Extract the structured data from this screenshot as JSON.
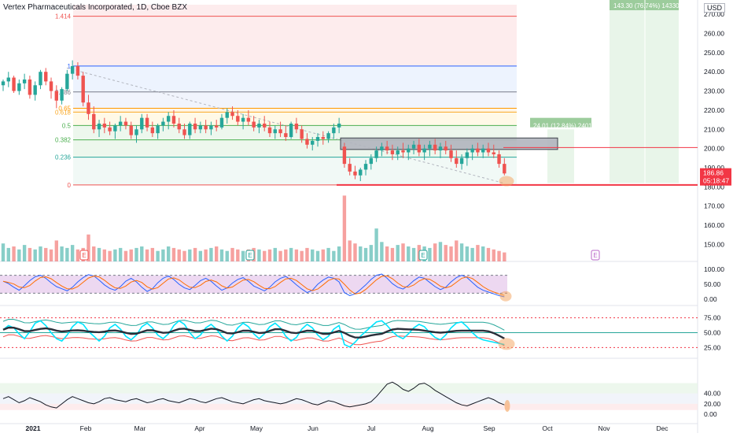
{
  "header": {
    "title": "Vertex Pharmaceuticals Incorporated, 1D, Cboe BZX",
    "currency": "USD"
  },
  "colors": {
    "bull": "#26a69a",
    "bear": "#ef5350",
    "price_line": "#f23645",
    "fib_one": "#2962ff",
    "fib_zero": "#787b86",
    "rsi_fill": "#e1bee7",
    "rsi_line": "#7e57c2",
    "stoch_k": "#2962ff",
    "stoch_d": "#ff6d00",
    "cyan": "#00e5ff",
    "dark": "#2a2e39",
    "ellipse": "#f5a25d"
  },
  "chart_data": {
    "type": "candlestick",
    "price_axis": {
      "ticks": [
        "270.00",
        "260.00",
        "250.00",
        "240.00",
        "230.00",
        "220.00",
        "210.00",
        "200.00",
        "190.00",
        "180.00",
        "170.00",
        "160.00",
        "150.00"
      ],
      "range": [
        144,
        275
      ]
    },
    "x_axis": {
      "ticks": [
        "2021",
        "Feb",
        "Mar",
        "Apr",
        "May",
        "Jun",
        "Jul",
        "Aug",
        "Sep",
        "Oct",
        "Nov",
        "Dec"
      ]
    },
    "current_price": {
      "value": "186.86",
      "countdown": "05:18:47"
    },
    "fib_levels": [
      {
        "label": "1.414",
        "price": 269
      },
      {
        "label": "1",
        "price": 243
      },
      {
        "label": "0.786",
        "price": 229.5
      },
      {
        "label": "0.65",
        "price": 221
      },
      {
        "label": "0.618",
        "price": 219
      },
      {
        "label": "0.5",
        "price": 212
      },
      {
        "label": "0.382",
        "price": 204.5
      },
      {
        "label": "0.236",
        "price": 195.5
      },
      {
        "label": "0",
        "price": 181
      }
    ],
    "long_position_small": {
      "label": "24.01 (12.84%) 2401"
    },
    "long_position_large": {
      "label": "143.30 (76.74%) 14330"
    },
    "earnings_markers": [
      "E",
      "E",
      "E",
      "E"
    ],
    "candles": [
      [
        233,
        236,
        230,
        235
      ],
      [
        235,
        240,
        232,
        237
      ],
      [
        237,
        238,
        229,
        230
      ],
      [
        230,
        236,
        228,
        234
      ],
      [
        234,
        239,
        231,
        236
      ],
      [
        236,
        238,
        226,
        228
      ],
      [
        228,
        235,
        225,
        233
      ],
      [
        233,
        241,
        231,
        240
      ],
      [
        240,
        242,
        233,
        235
      ],
      [
        235,
        237,
        226,
        230
      ],
      [
        230,
        233,
        221,
        225
      ],
      [
        225,
        232,
        223,
        231
      ],
      [
        231,
        241,
        230,
        239
      ],
      [
        239,
        246,
        236,
        243
      ],
      [
        243,
        245,
        236,
        238
      ],
      [
        238,
        240,
        222,
        224
      ],
      [
        224,
        228,
        215,
        218
      ],
      [
        218,
        222,
        208,
        210
      ],
      [
        210,
        215,
        206,
        213
      ],
      [
        213,
        216,
        208,
        211
      ],
      [
        211,
        214,
        207,
        209
      ],
      [
        209,
        213,
        205,
        212
      ],
      [
        212,
        217,
        209,
        214
      ],
      [
        214,
        216,
        210,
        212
      ],
      [
        212,
        214,
        205,
        207
      ],
      [
        207,
        212,
        203,
        210
      ],
      [
        210,
        218,
        208,
        216
      ],
      [
        216,
        218,
        209,
        211
      ],
      [
        211,
        214,
        206,
        208
      ],
      [
        208,
        213,
        205,
        212
      ],
      [
        212,
        216,
        209,
        214
      ],
      [
        214,
        219,
        210,
        217
      ],
      [
        217,
        220,
        211,
        213
      ],
      [
        213,
        216,
        208,
        210
      ],
      [
        210,
        213,
        205,
        207
      ],
      [
        207,
        214,
        205,
        213
      ],
      [
        213,
        216,
        208,
        210
      ],
      [
        210,
        214,
        208,
        212
      ],
      [
        212,
        215,
        208,
        210
      ],
      [
        210,
        214,
        207,
        212
      ],
      [
        212,
        215,
        209,
        211
      ],
      [
        211,
        218,
        210,
        216
      ],
      [
        216,
        221,
        213,
        219
      ],
      [
        219,
        222,
        215,
        217
      ],
      [
        217,
        220,
        212,
        214
      ],
      [
        214,
        218,
        210,
        216
      ],
      [
        216,
        220,
        212,
        214
      ],
      [
        214,
        217,
        209,
        211
      ],
      [
        211,
        215,
        208,
        213
      ],
      [
        213,
        217,
        209,
        211
      ],
      [
        211,
        214,
        206,
        208
      ],
      [
        208,
        212,
        205,
        210
      ],
      [
        210,
        214,
        206,
        208
      ],
      [
        208,
        212,
        204,
        206
      ],
      [
        206,
        214,
        205,
        213
      ],
      [
        213,
        216,
        208,
        210
      ],
      [
        210,
        212,
        203,
        205
      ],
      [
        205,
        208,
        200,
        202
      ],
      [
        202,
        206,
        199,
        204
      ],
      [
        204,
        208,
        201,
        206
      ],
      [
        206,
        209,
        202,
        205
      ],
      [
        205,
        209,
        203,
        208
      ],
      [
        208,
        213,
        205,
        211
      ],
      [
        211,
        216,
        208,
        213
      ],
      [
        201,
        203,
        190,
        192
      ],
      [
        192,
        195,
        186,
        188
      ],
      [
        188,
        191,
        184,
        186
      ],
      [
        186,
        190,
        183,
        189
      ],
      [
        189,
        194,
        186,
        192
      ],
      [
        192,
        197,
        189,
        195
      ],
      [
        195,
        201,
        193,
        199
      ],
      [
        199,
        203,
        196,
        201
      ],
      [
        201,
        204,
        197,
        199
      ],
      [
        199,
        202,
        194,
        197
      ],
      [
        197,
        201,
        194,
        199
      ],
      [
        199,
        203,
        195,
        198
      ],
      [
        198,
        202,
        194,
        200
      ],
      [
        200,
        204,
        197,
        202
      ],
      [
        202,
        205,
        196,
        198
      ],
      [
        198,
        202,
        194,
        200
      ],
      [
        200,
        204,
        196,
        202
      ],
      [
        202,
        205,
        197,
        199
      ],
      [
        199,
        203,
        195,
        201
      ],
      [
        201,
        204,
        197,
        199
      ],
      [
        199,
        202,
        193,
        195
      ],
      [
        195,
        199,
        190,
        192
      ],
      [
        192,
        197,
        189,
        195
      ],
      [
        195,
        200,
        191,
        198
      ],
      [
        198,
        202,
        194,
        200
      ],
      [
        200,
        203,
        196,
        198
      ],
      [
        198,
        202,
        195,
        200
      ],
      [
        200,
        203,
        196,
        198
      ],
      [
        198,
        202,
        195,
        197
      ],
      [
        197,
        199,
        190,
        192
      ],
      [
        192,
        195,
        186,
        187
      ]
    ],
    "volume": [
      12,
      9,
      10,
      8,
      11,
      9,
      8,
      10,
      9,
      8,
      14,
      10,
      9,
      11,
      8,
      9,
      18,
      10,
      9,
      8,
      7,
      8,
      9,
      7,
      8,
      9,
      10,
      8,
      9,
      7,
      8,
      10,
      9,
      8,
      7,
      8,
      9,
      7,
      8,
      9,
      10,
      8,
      7,
      9,
      8,
      7,
      8,
      9,
      8,
      7,
      8,
      9,
      7,
      8,
      9,
      8,
      7,
      9,
      8,
      7,
      8,
      9,
      7,
      10,
      44,
      14,
      12,
      10,
      9,
      11,
      22,
      13,
      10,
      9,
      11,
      12,
      10,
      9,
      11,
      10,
      9,
      12,
      13,
      11,
      10,
      14,
      12,
      10,
      9,
      11,
      10,
      9,
      8,
      7,
      6
    ],
    "rsi_panel": {
      "ticks": [
        "100.00",
        "50.00",
        "0.00"
      ],
      "values": [
        60,
        52,
        40,
        30,
        45,
        62,
        75,
        80,
        70,
        55,
        42,
        35,
        28,
        40,
        58,
        72,
        82,
        78,
        64,
        48,
        36,
        30,
        42,
        60,
        70,
        58,
        40,
        26,
        35,
        55,
        70,
        78,
        66,
        50,
        38,
        32,
        46,
        62,
        70,
        60,
        44,
        30,
        38,
        54,
        66,
        72,
        60,
        44,
        36,
        28,
        40,
        58,
        70,
        76,
        64,
        48,
        34,
        22,
        30,
        50,
        64,
        74,
        70,
        58,
        22,
        12,
        18,
        32,
        48,
        66,
        80,
        84,
        70,
        52,
        40,
        34,
        46,
        62,
        74,
        70,
        56,
        42,
        32,
        40,
        58,
        72,
        80,
        72,
        56,
        40,
        30,
        24,
        18,
        12,
        8
      ]
    },
    "osc_panel": {
      "ticks": [
        "75.00",
        "50.00",
        "25.00"
      ],
      "values": [
        55,
        62,
        58,
        48,
        40,
        52,
        66,
        70,
        62,
        50,
        40,
        36,
        46,
        60,
        68,
        64,
        52,
        44,
        36,
        44,
        58,
        64,
        56,
        44,
        38,
        46,
        60,
        66,
        58,
        46,
        40,
        48,
        62,
        70,
        64,
        50,
        40,
        46,
        58,
        64,
        56,
        44,
        36,
        44,
        58,
        66,
        60,
        48,
        40,
        48,
        60,
        66,
        58,
        44,
        36,
        42,
        56,
        64,
        58,
        46,
        38,
        44,
        56,
        62,
        30,
        26,
        34,
        44,
        52,
        60,
        68,
        70,
        62,
        52,
        44,
        40,
        48,
        58,
        64,
        60,
        50,
        42,
        38,
        46,
        58,
        66,
        68,
        60,
        50,
        42,
        38,
        36,
        34,
        32,
        30
      ]
    },
    "bottom_panel": {
      "ticks": [
        "40.00",
        "20.00",
        "0.00"
      ],
      "values": [
        30,
        34,
        28,
        22,
        26,
        32,
        28,
        24,
        18,
        14,
        12,
        20,
        28,
        34,
        30,
        26,
        22,
        20,
        24,
        30,
        32,
        28,
        26,
        24,
        28,
        30,
        26,
        22,
        24,
        28,
        30,
        26,
        24,
        22,
        26,
        30,
        28,
        24,
        22,
        26,
        30,
        32,
        28,
        24,
        22,
        20,
        24,
        28,
        30,
        26,
        24,
        22,
        20,
        22,
        26,
        30,
        28,
        24,
        20,
        18,
        22,
        26,
        24,
        20,
        16,
        14,
        16,
        18,
        20,
        24,
        34,
        46,
        58,
        62,
        56,
        48,
        44,
        50,
        58,
        60,
        54,
        46,
        40,
        34,
        28,
        22,
        18,
        16,
        20,
        24,
        28,
        32,
        28,
        22,
        18
      ]
    }
  }
}
